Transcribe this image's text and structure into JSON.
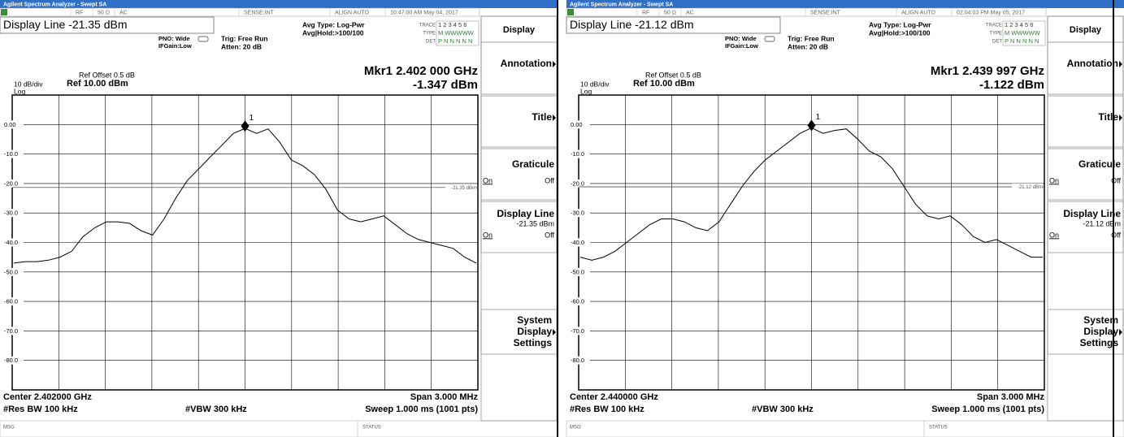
{
  "chart_data": [
    {
      "type": "line",
      "ylim": [
        -90,
        10
      ],
      "yticks": [
        {
          "value": 0,
          "label": "0.00"
        },
        {
          "value": -10,
          "label": "-10.0"
        },
        {
          "value": -20,
          "label": "-20.0"
        },
        {
          "value": -30,
          "label": "-30.0"
        },
        {
          "value": -40,
          "label": "-40.0"
        },
        {
          "value": -50,
          "label": "-50.0"
        },
        {
          "value": -60,
          "label": "-60.0"
        },
        {
          "value": -70,
          "label": "-70.0"
        },
        {
          "value": -80,
          "label": "-80.0"
        }
      ],
      "grid": true,
      "color": "#000000",
      "scale_label": "10 dB/div",
      "scale_type": "Log",
      "ref_offset": "Ref Offset 0.5 dB",
      "ref_level": "Ref 10.00 dBm",
      "marker_freq": "Mkr1 2.402 000 GHz",
      "marker": {
        "name": "1",
        "value": -1.347,
        "value_label": "-1.347 dBm"
      },
      "display_line": {
        "value": -21.35,
        "label": "-21.35 dBm"
      },
      "center": "Center 2.402000 GHz",
      "span": "Span 3.000 MHz",
      "rbw": "#Res BW 100 kHz",
      "vbw": "#VBW 300 kHz",
      "sweep": "Sweep  1.000 ms (1001 pts)",
      "values": [
        -47,
        -46.5,
        -46.5,
        -46,
        -45,
        -43,
        -38,
        -35,
        -33,
        -33,
        -33.5,
        -36,
        -37.5,
        -32,
        -25,
        -19,
        -15,
        -11,
        -7,
        -3,
        -1.347,
        -3,
        -1.5,
        -6,
        -12,
        -14,
        -17,
        -22,
        -29,
        -32,
        -33,
        -32,
        -31,
        -34,
        -37,
        -39,
        -40,
        -41,
        -42,
        -45,
        -47
      ]
    },
    {
      "type": "line",
      "ylim": [
        -90,
        10
      ],
      "yticks": [
        {
          "value": 0,
          "label": "0.00"
        },
        {
          "value": -10,
          "label": "-10.0"
        },
        {
          "value": -20,
          "label": "-20.0"
        },
        {
          "value": -30,
          "label": "-30.0"
        },
        {
          "value": -40,
          "label": "-40.0"
        },
        {
          "value": -50,
          "label": "-50.0"
        },
        {
          "value": -60,
          "label": "-60.0"
        },
        {
          "value": -70,
          "label": "-70.0"
        },
        {
          "value": -80,
          "label": "-80.0"
        }
      ],
      "grid": true,
      "color": "#000000",
      "scale_label": "10 dB/div",
      "scale_type": "Log",
      "ref_offset": "Ref Offset 0.5 dB",
      "ref_level": "Ref 10.00 dBm",
      "marker_freq": "Mkr1 2.439 997 GHz",
      "marker": {
        "name": "1",
        "value": -1.122,
        "value_label": "-1.122 dBm"
      },
      "display_line": {
        "value": -21.12,
        "label": "-21.12 dBm"
      },
      "center": "Center 2.440000 GHz",
      "span": "Span 3.000 MHz",
      "rbw": "#Res BW 100 kHz",
      "vbw": "#VBW 300 kHz",
      "sweep": "Sweep  1.000 ms (1001 pts)",
      "values": [
        -45,
        -46,
        -45,
        -43,
        -40,
        -37,
        -34,
        -32,
        -32,
        -33,
        -35,
        -36,
        -33,
        -27,
        -21,
        -16,
        -12,
        -9,
        -6,
        -3,
        -1.122,
        -3,
        -2,
        -1.5,
        -5,
        -9,
        -11,
        -15,
        -21,
        -27,
        -31,
        -32,
        -31,
        -34,
        -38,
        -40,
        -39,
        -41,
        -43,
        -45,
        -45
      ]
    }
  ],
  "screens": [
    {
      "window_title": "Agilent Spectrum Analyzer - Swept SA",
      "status": [
        "RF",
        "50 Ω",
        "AC",
        "SENSE:INT",
        "ALIGN AUTO",
        "10:47:00 AM May 04, 2017"
      ],
      "display_line_text": "Display Line -21.35 dBm",
      "pno": "PNO: Wide",
      "ifgain": "IFGain:Low",
      "trig": "Trig: Free Run",
      "atten": "Atten: 20 dB",
      "avg_type": "Avg Type: Log-Pwr",
      "avg_hold": "Avg|Hold:>100/100",
      "trace_table": [
        [
          "TRACE",
          "1 2 3 4 5 6"
        ],
        [
          "TYPE",
          "M WWWWW"
        ],
        [
          "DET",
          "P N N N N N"
        ]
      ],
      "msg": "MSG",
      "status_label": "STATUS",
      "menu_title": "Display",
      "keys": [
        {
          "label": "Annotation"
        },
        {
          "label": "Title"
        },
        {
          "label": "Graticule",
          "on": "On",
          "off": "Off"
        },
        {
          "label": "Display Line",
          "on": "On",
          "off": "Off"
        },
        {
          "lines": [
            "System",
            "Display",
            "Settings"
          ]
        }
      ]
    },
    {
      "window_title": "Agilent Spectrum Analyzer - Swept SA",
      "status": [
        "RF",
        "50 Ω",
        "AC",
        "SENSE:INT",
        "ALIGN AUTO",
        "02:04:03 PM May 05, 2017"
      ],
      "display_line_text": "Display Line -21.12 dBm",
      "pno": "PNO: Wide",
      "ifgain": "IFGain:Low",
      "trig": "Trig: Free Run",
      "atten": "Atten: 20 dB",
      "avg_type": "Avg Type: Log-Pwr",
      "avg_hold": "Avg|Hold:>100/100",
      "trace_table": [
        [
          "TRACE",
          "1 2 3 4 5 6"
        ],
        [
          "TYPE",
          "M WWWWW"
        ],
        [
          "DET",
          "P N N N N N"
        ]
      ],
      "msg": "MSG",
      "status_label": "STATUS",
      "menu_title": "Display",
      "keys": [
        {
          "label": "Annotation"
        },
        {
          "label": "Title"
        },
        {
          "label": "Graticule",
          "on": "On",
          "off": "Off"
        },
        {
          "label": "Display Line",
          "on": "On",
          "off": "Off"
        },
        {
          "lines": [
            "System",
            "Display",
            "Settings"
          ]
        }
      ]
    }
  ]
}
